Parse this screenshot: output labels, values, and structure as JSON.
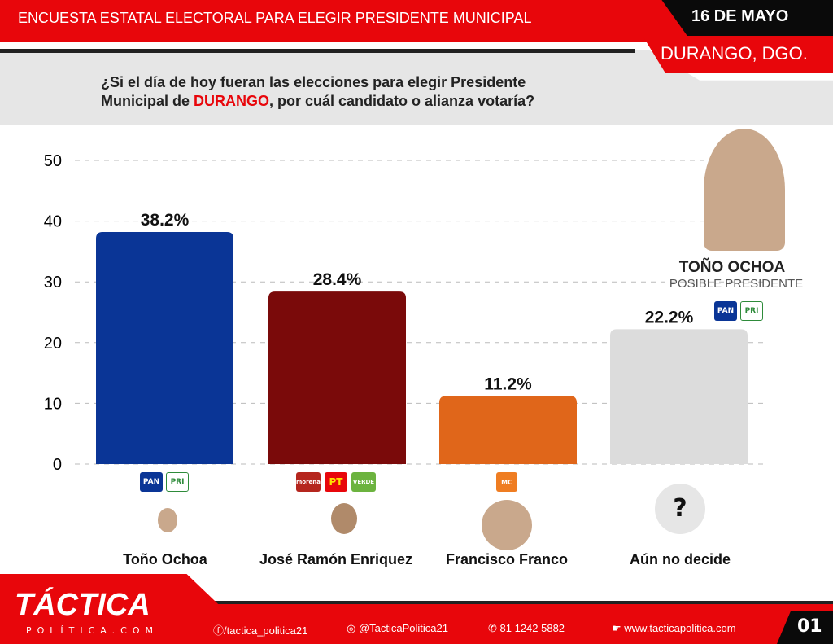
{
  "header": {
    "title": "ENCUESTA ESTATAL ELECTORAL PARA ELEGIR PRESIDENTE MUNICIPAL",
    "date": "16 DE MAYO",
    "location": "DURANGO, DGO."
  },
  "question": {
    "part1": "¿Si el día de hoy fueran las elecciones para elegir Presidente",
    "part2": "Municipal de ",
    "highlight": "DURANGO",
    "part3": ", por cuál candidato o alianza votaría?"
  },
  "featured": {
    "name": "TOÑO OCHOA",
    "subtitle": "POSIBLE PRESIDENTE"
  },
  "candidates": [
    {
      "name": "Toño Ochoa",
      "parties": [
        "PAN",
        "PRI"
      ]
    },
    {
      "name": "José Ramón Enriquez",
      "parties": [
        "morena",
        "PT",
        "VERDE"
      ]
    },
    {
      "name": "Francisco Franco",
      "parties": [
        "MC"
      ]
    },
    {
      "name": "Aún no decide",
      "parties": [],
      "symbol": "?"
    }
  ],
  "chart_data": {
    "type": "bar",
    "categories": [
      "Toño Ochoa",
      "José Ramón Enriquez",
      "Francisco Franco",
      "Aún no decide"
    ],
    "values": [
      38.2,
      28.4,
      11.2,
      22.2
    ],
    "labels": [
      "38.2%",
      "28.4%",
      "11.2%",
      "22.2%"
    ],
    "colors": [
      "#0a3596",
      "#7a0a0a",
      "#e0661a",
      "#dcdcdc"
    ],
    "ylim": [
      0,
      50
    ],
    "yticks": [
      "0",
      "10",
      "20",
      "30",
      "40",
      "50"
    ],
    "grid": true
  },
  "extra_label_logos": [
    "PAN",
    "PRI"
  ],
  "footer": {
    "brand": "TÁCTICA",
    "brand_sub": "POLÍTICA.COM",
    "facebook": "/tactica_politica21",
    "instagram": "@TacticaPolitica21",
    "phone": "81 1242 5882",
    "website": "www.tacticapolitica.com",
    "page": "01"
  },
  "party_colors": {
    "PAN": "#0a3596",
    "PRI": "#2e8b3a",
    "morena": "#b5261e",
    "PT": "#e8060b",
    "VERDE": "#6cb33f",
    "MC": "#ef7d22"
  }
}
